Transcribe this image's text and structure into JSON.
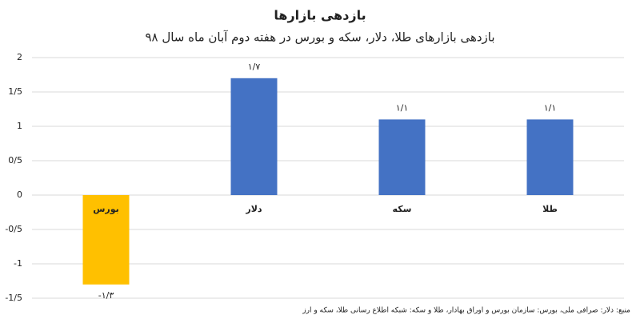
{
  "chart_data": {
    "type": "bar",
    "title": "بازدهی بازارها",
    "subtitle": "بازدهی بازارهای طلا، دلار، سکه و بورس در هفته دوم آبان ماه سال ۹۸",
    "source": "منبع: دلار: صرافی ملی، بورس: سازمان بورس و اوراق بهادار، طلا و سکه: شبکه اطلاع رسانی طلا، سکه و ارز",
    "categories": [
      "بورس",
      "دلار",
      "سکه",
      "طلا"
    ],
    "values": [
      -1.3,
      1.7,
      1.1,
      1.1
    ],
    "value_labels": [
      "-۱/۳",
      "۱/۷",
      "۱/۱",
      "۱/۱"
    ],
    "colors": [
      "#ffc000",
      "#4472c4",
      "#4472c4",
      "#4472c4"
    ],
    "ylim": [
      -1.5,
      2
    ],
    "yticks": [
      2,
      {
        "value": 1.5,
        "label": "1/5"
      },
      1,
      {
        "value": 0.5,
        "label": "0/5"
      },
      0,
      {
        "value": -0.5,
        "label": "-0/5"
      },
      -1,
      {
        "value": -1.5,
        "label": "-1/5"
      }
    ],
    "grid": true
  }
}
